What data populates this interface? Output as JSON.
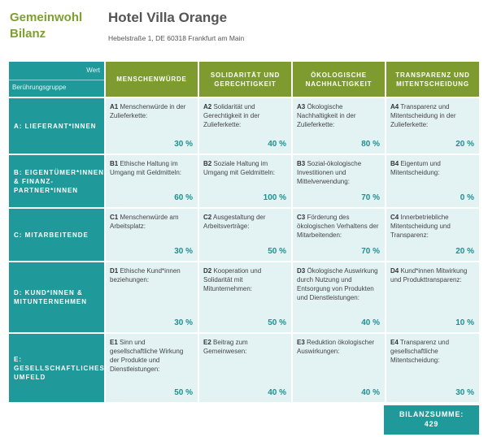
{
  "logo": {
    "line1": "Gemeinwohl",
    "line2": "Bilanz"
  },
  "hotel": {
    "name": "Hotel Villa Orange",
    "address": "Hebelstraße 1, DE 60318 Frankfurt am Main"
  },
  "corner": {
    "wert": "Wert",
    "group": "Berührungsgruppe"
  },
  "columns": [
    "MENSCHENWÜRDE",
    "SOLIDARITÄT UND GERECHTIGKEIT",
    "ÖKOLOGISCHE NACHHALTIGKEIT",
    "TRANSPARENZ UND MITENTSCHEIDUNG"
  ],
  "rows": [
    {
      "label": "A: LIEFERANT*INNEN",
      "cells": [
        {
          "code": "A1",
          "text": "Menschenwürde in der Zulieferkette:",
          "value": "30 %"
        },
        {
          "code": "A2",
          "text": "Solidarität und Gerechtigkeit in der Zulieferkette:",
          "value": "40 %"
        },
        {
          "code": "A3",
          "text": "Ökologische Nachhaltigkeit in der Zulieferkette:",
          "value": "80 %"
        },
        {
          "code": "A4",
          "text": "Transparenz und Mitentscheidung in der Zulieferkette:",
          "value": "20 %"
        }
      ]
    },
    {
      "label": "B: EIGENTÜMER*INNEN & FINANZ-PARTNER*INNEN",
      "cells": [
        {
          "code": "B1",
          "text": "Ethische Haltung im Umgang mit Geldmitteln:",
          "value": "60 %"
        },
        {
          "code": "B2",
          "text": "Soziale Haltung im Umgang mit Geldmitteln:",
          "value": "100 %"
        },
        {
          "code": "B3",
          "text": "Sozial-ökologische Investitionen und Mittelverwendung:",
          "value": "70 %"
        },
        {
          "code": "B4",
          "text": "Eigentum und Mitentscheidung:",
          "value": "0 %"
        }
      ]
    },
    {
      "label": "C: MITARBEITENDE",
      "cells": [
        {
          "code": "C1",
          "text": "Menschenwürde am Arbeitsplatz:",
          "value": "30 %"
        },
        {
          "code": "C2",
          "text": "Ausgestaltung der Arbeitsverträge:",
          "value": "50 %"
        },
        {
          "code": "C3",
          "text": "Förderung des ökologischen Verhaltens der Mitarbeitenden:",
          "value": "70 %"
        },
        {
          "code": "C4",
          "text": "Innerbetriebliche Mitentscheidung und Transparenz:",
          "value": "20 %"
        }
      ]
    },
    {
      "label": "D: KUND*INNEN & MITUNTERNEHMEN",
      "cells": [
        {
          "code": "D1",
          "text": "Ethische Kund*innen beziehungen:",
          "value": "30 %"
        },
        {
          "code": "D2",
          "text": "Kooperation und Solidarität mit Mitunternehmen:",
          "value": "50 %"
        },
        {
          "code": "D3",
          "text": "Ökologische Auswirkung durch Nutzung und Entsorgung von Produkten und Dienstleistungen:",
          "value": "40 %"
        },
        {
          "code": "D4",
          "text": "Kund*innen Mitwirkung und Produkttransparenz:",
          "value": "10 %"
        }
      ]
    },
    {
      "label": "E: GESELLSCHAFTLICHES UMFELD",
      "cells": [
        {
          "code": "E1",
          "text": "Sinn und gesellschaftliche Wirkung der Produkte und Dienstleistungen:",
          "value": "50 %"
        },
        {
          "code": "E2",
          "text": "Beitrag zum Gemeinwesen:",
          "value": "40 %"
        },
        {
          "code": "E3",
          "text": "Reduktion ökologischer Auswirkungen:",
          "value": "40 %"
        },
        {
          "code": "E4",
          "text": "Transparenz und gesellschaftliche Mitentscheidung:",
          "value": "30 %"
        }
      ]
    }
  ],
  "sum": {
    "label": "BILANZSUMME:",
    "value": "429"
  },
  "colors": {
    "teal": "#1f9999",
    "green": "#7d9b2f",
    "cell_bg": "#e3f3f4",
    "value_text": "#1f8f8f"
  }
}
